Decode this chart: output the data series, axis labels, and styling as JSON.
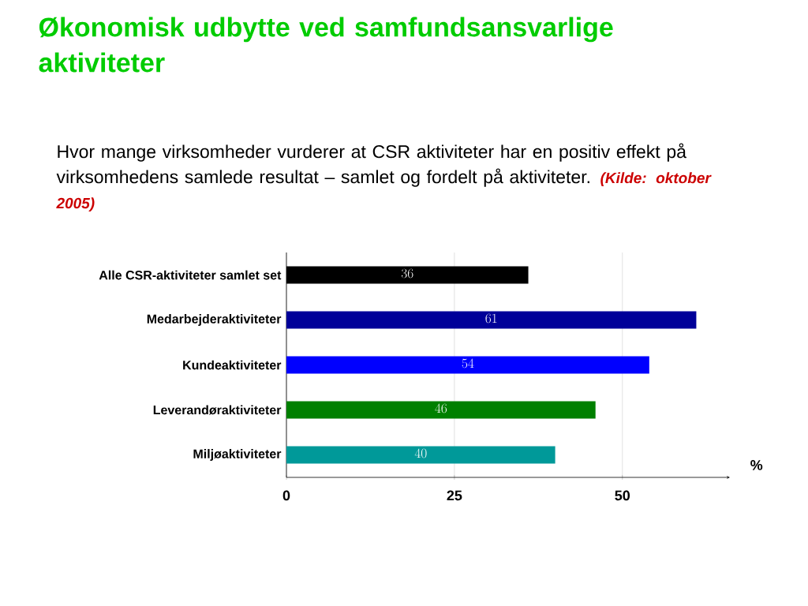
{
  "chart_data": {
    "type": "bar",
    "orientation": "horizontal",
    "title": "Økonomisk udbytte ved samfundsansvarlige aktiviteter",
    "subtitle": "Hvor mange virksomheder vurderer at CSR aktiviteter har en positiv effekt på virksomhedens samlede resultat – samlet og fordelt på aktiviteter.",
    "annotations": [
      "(Kilde: oktober 2005)"
    ],
    "categories": [
      "Alle CSR-aktiviteter samlet set",
      "Medarbejderaktiviteter",
      "Kundeaktiviteter",
      "Leverandøraktiviteter",
      "Miljøaktiviteter"
    ],
    "values": [
      36,
      61,
      54,
      46,
      40
    ],
    "colors": [
      "#000000",
      "#000099",
      "#0000ff",
      "#008000",
      "#009999"
    ],
    "xlim": [
      0,
      66
    ],
    "xticks": [
      0,
      25,
      50
    ],
    "xlabel": "%",
    "grid": "x",
    "data_labels": true
  }
}
